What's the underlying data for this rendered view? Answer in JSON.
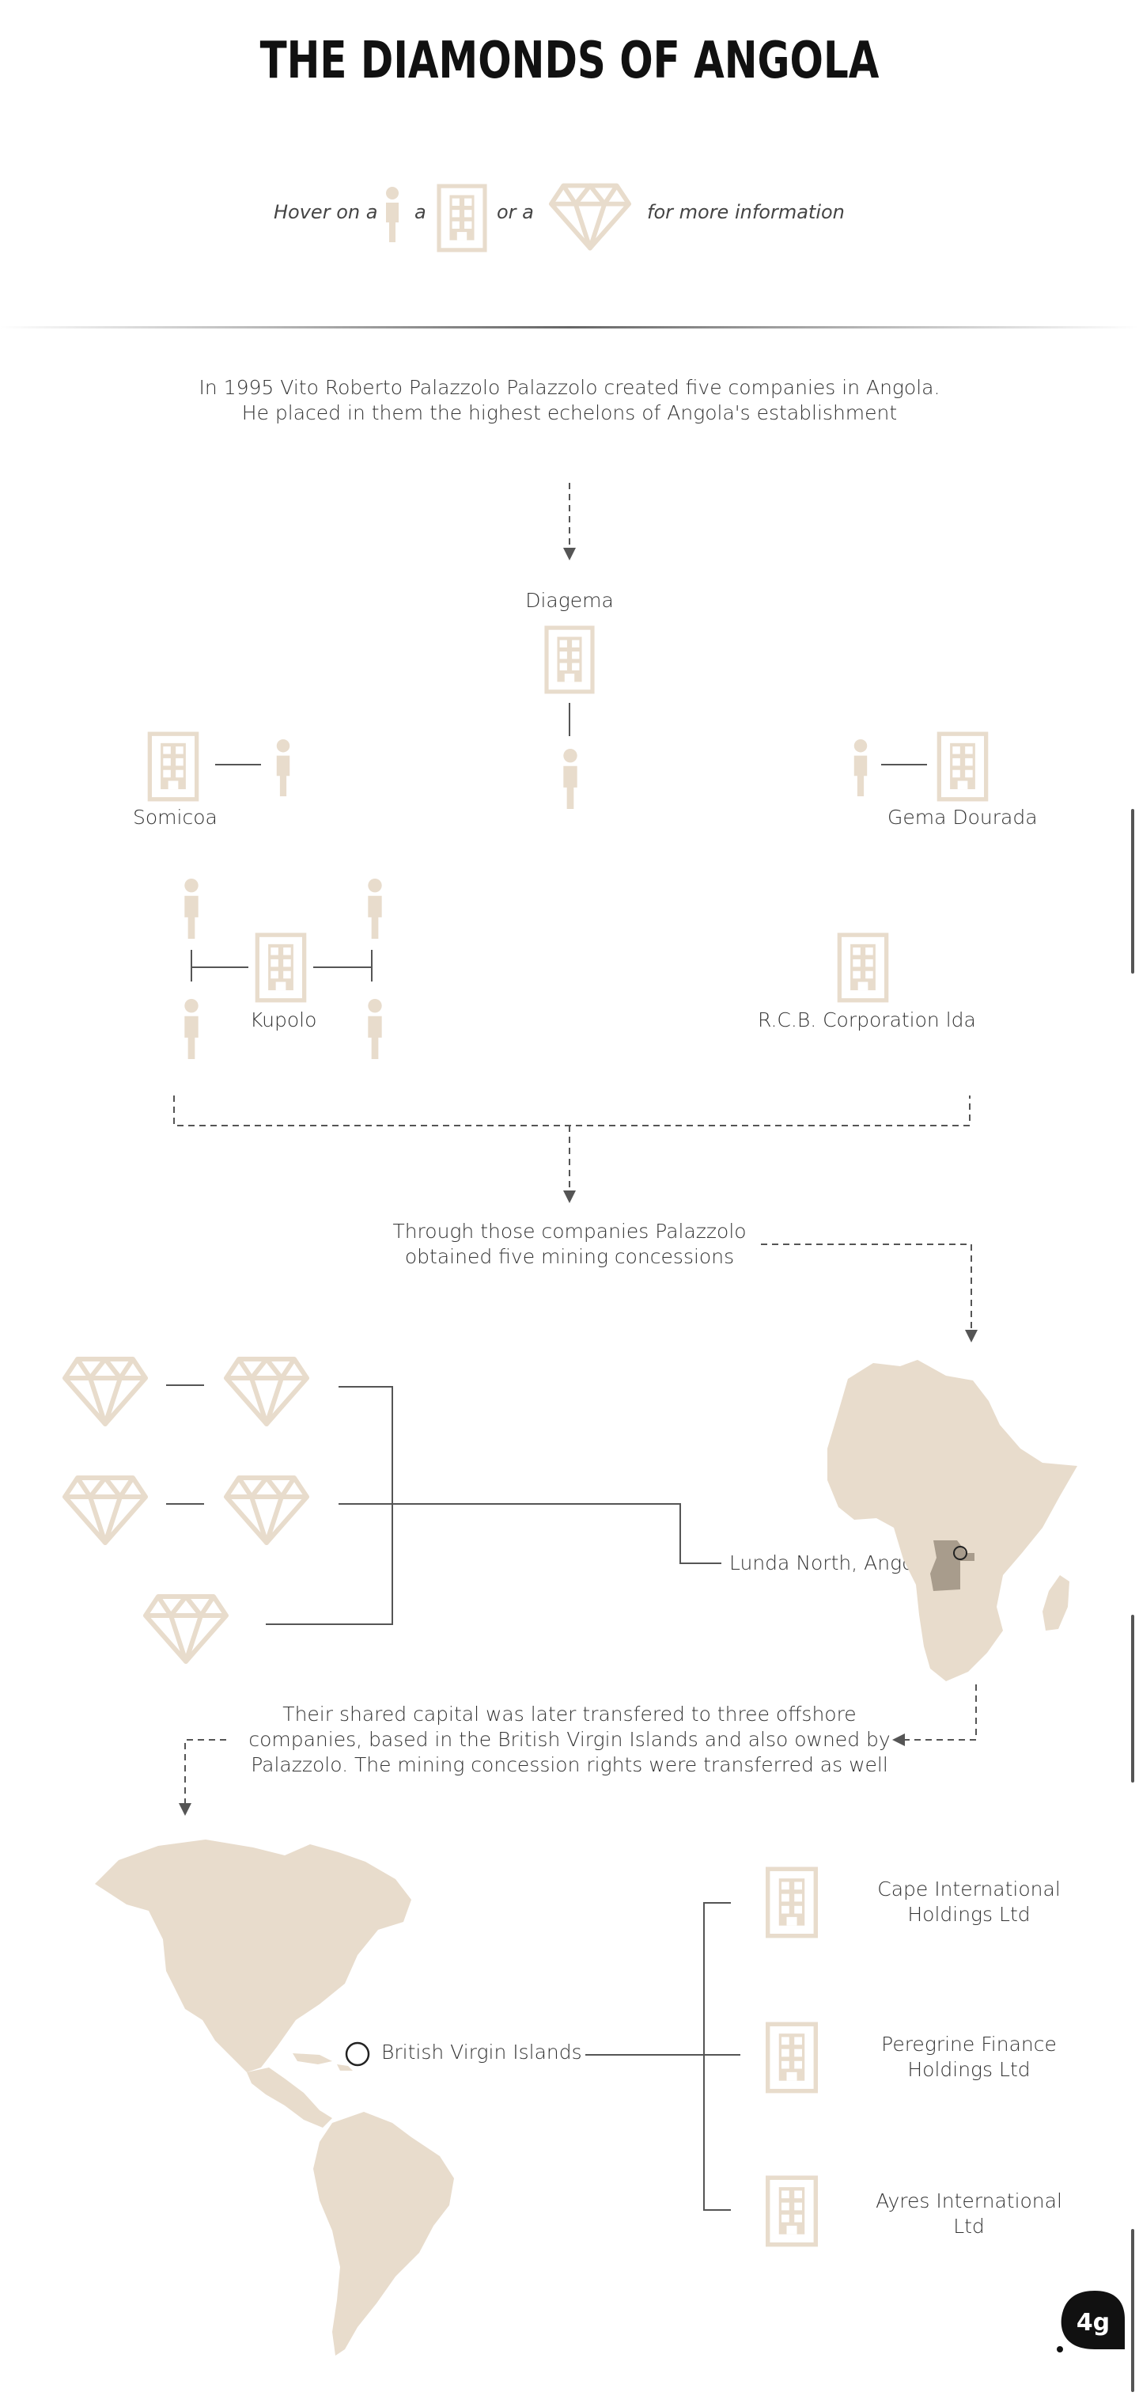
{
  "header": {
    "title": "THE DIAMONDS OF ANGOLA",
    "hint": {
      "part1": "Hover on a",
      "part2": "a",
      "part3": "or a",
      "part4": "for more information"
    }
  },
  "colors": {
    "icon": "#e8dccc",
    "angola": "#a89c8c",
    "line": "#555555",
    "text": "#333333"
  },
  "icons": {
    "person": "person-icon",
    "building": "building-icon",
    "diamond": "diamond-icon"
  },
  "section1": {
    "intro_line1": "In 1995 Vito Roberto Palazzolo Palazzolo created five companies in Angola.",
    "intro_line2": "He placed in them the highest echelons of Angola's establishment",
    "companies": {
      "diagema": "Diagema",
      "somicoa": "Somicoa",
      "gema_dourada": "Gema Dourada",
      "kupolo": "Kupolo",
      "rcb": "R.C.B. Corporation lda"
    }
  },
  "section2": {
    "text_line1": "Through those companies Palazzolo",
    "text_line2": "obtained five mining concessions",
    "location": "Lunda North, Angola"
  },
  "section3": {
    "text_line1": "Their shared capital was later transfered to three offshore",
    "text_line2": "companies, based in the British Virgin Islands and also owned by",
    "text_line3": "Palazzolo. The mining concession rights were transferred as well",
    "location": "British Virgin Islands",
    "offshore": {
      "cape_line1": "Cape International",
      "cape_line2": "Holdings Ltd",
      "peregrine_line1": "Peregrine Finance",
      "peregrine_line2": "Holdings Ltd",
      "ayres_line1": "Ayres International",
      "ayres_line2": "Ltd"
    }
  },
  "footer": {
    "logo_text": "4g"
  }
}
